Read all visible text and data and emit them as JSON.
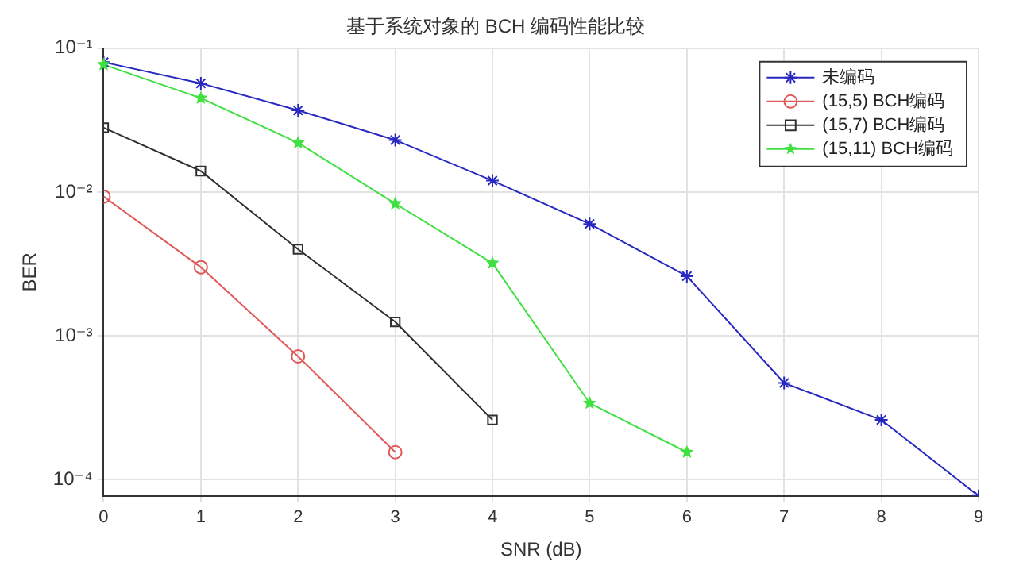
{
  "chart_data": {
    "type": "line",
    "title": "基于系统对象的 BCH 编码性能比较",
    "xlabel": "SNR (dB)",
    "ylabel": "BER",
    "log": "y",
    "grid": true,
    "legend": "top right",
    "line_style": "solid",
    "x": [
      0,
      1,
      2,
      3,
      4,
      5,
      6,
      7,
      8,
      9
    ],
    "xlim": [
      0,
      9
    ],
    "xticks": [
      0,
      1,
      2,
      3,
      4,
      5,
      6,
      7,
      8,
      9
    ],
    "ylim": [
      7.7e-05,
      0.1
    ],
    "yticks": [
      {
        "value": 0.0001,
        "label": "10⁻⁴"
      },
      {
        "value": 0.001,
        "label": "10⁻³"
      },
      {
        "value": 0.01,
        "label": "10⁻²"
      },
      {
        "value": 0.1,
        "label": "10⁻¹"
      }
    ],
    "series": [
      {
        "name": "未编码",
        "color": "#2828c0",
        "marker": "cross",
        "values": [
          0.08,
          0.057,
          0.037,
          0.023,
          0.012,
          0.006,
          0.0026,
          0.00047,
          0.00026,
          7.7e-05
        ]
      },
      {
        "name": "(15,5) BCH编码",
        "color": "#e05858",
        "marker": "circle",
        "values": [
          0.0093,
          0.003,
          0.00072,
          0.000155,
          null,
          null,
          null,
          null,
          null,
          null
        ]
      },
      {
        "name": "(15,7) BCH编码",
        "color": "#303030",
        "marker": "square",
        "values": [
          0.028,
          0.014,
          0.004,
          0.00125,
          0.00026,
          null,
          null,
          null,
          null,
          null
        ]
      },
      {
        "name": "(15,11) BCH编码",
        "color": "#40e040",
        "marker": "star",
        "values": [
          0.077,
          0.045,
          0.022,
          0.0083,
          0.0032,
          0.00034,
          0.000155,
          null,
          null,
          null
        ]
      }
    ]
  }
}
